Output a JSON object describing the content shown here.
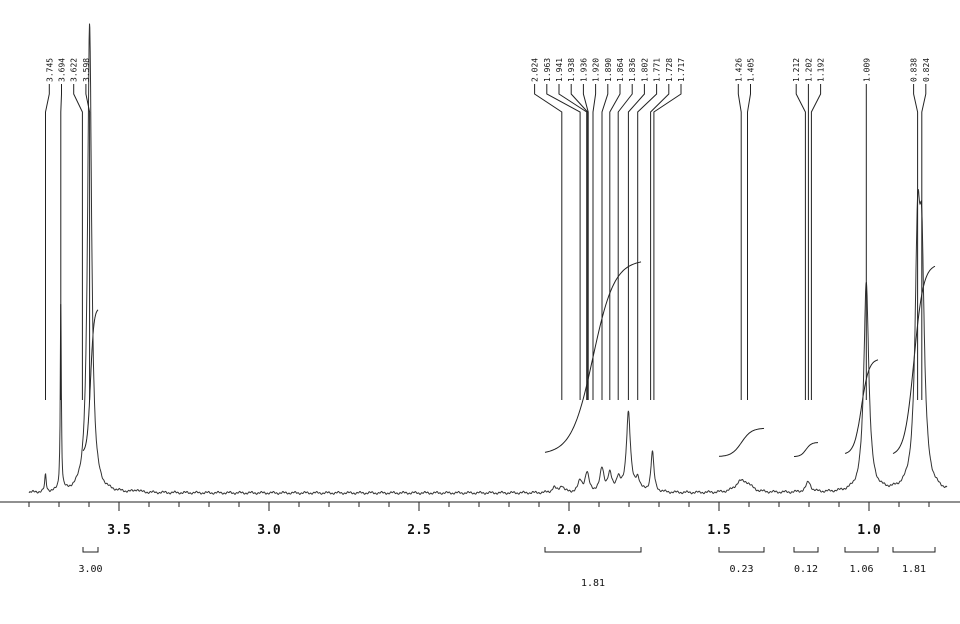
{
  "chart_data": {
    "type": "line",
    "title": "",
    "xlabel": "",
    "ylabel": "",
    "x_axis": {
      "unit": "",
      "reversed": true,
      "xlim": [
        3.8,
        0.74
      ],
      "major_ticks": [
        {
          "value": 3.5,
          "label": "3.5"
        },
        {
          "value": 3.0,
          "label": "3.0"
        },
        {
          "value": 2.5,
          "label": "2.5"
        },
        {
          "value": 2.0,
          "label": "2.0"
        },
        {
          "value": 1.5,
          "label": "1.5"
        },
        {
          "value": 1.0,
          "label": "1.0"
        }
      ],
      "minor_tick_step": 0.1
    },
    "peak_labels": [
      {
        "label": "3.745",
        "shift": 3.745
      },
      {
        "label": "3.694",
        "shift": 3.694
      },
      {
        "label": "3.622",
        "shift": 3.622
      },
      {
        "label": "3.598",
        "shift": 3.598
      },
      {
        "label": "2.024",
        "shift": 2.024
      },
      {
        "label": "1.963",
        "shift": 1.963
      },
      {
        "label": "1.941",
        "shift": 1.941
      },
      {
        "label": "1.938",
        "shift": 1.938
      },
      {
        "label": "1.936",
        "shift": 1.936
      },
      {
        "label": "1.920",
        "shift": 1.92
      },
      {
        "label": "1.890",
        "shift": 1.89
      },
      {
        "label": "1.864",
        "shift": 1.864
      },
      {
        "label": "1.836",
        "shift": 1.836
      },
      {
        "label": "1.802",
        "shift": 1.802
      },
      {
        "label": "1.771",
        "shift": 1.771
      },
      {
        "label": "1.728",
        "shift": 1.728
      },
      {
        "label": "1.717",
        "shift": 1.717
      },
      {
        "label": "1.426",
        "shift": 1.426
      },
      {
        "label": "1.405",
        "shift": 1.405
      },
      {
        "label": "1.212",
        "shift": 1.212
      },
      {
        "label": "1.202",
        "shift": 1.202
      },
      {
        "label": "1.192",
        "shift": 1.192
      },
      {
        "label": "1.009",
        "shift": 1.009
      },
      {
        "label": "0.838",
        "shift": 0.838
      },
      {
        "label": "0.824",
        "shift": 0.824
      }
    ],
    "peaks": [
      {
        "shift": 3.745,
        "height": 0.04,
        "width": 0.003
      },
      {
        "shift": 3.694,
        "height": 0.46,
        "width": 0.002
      },
      {
        "shift": 3.598,
        "height": 1.12,
        "width": 0.008
      },
      {
        "shift": 3.44,
        "height": 0.006,
        "width": 0.008
      },
      {
        "shift": 2.05,
        "height": 0.012,
        "width": 0.008
      },
      {
        "shift": 2.024,
        "height": 0.016,
        "width": 0.008
      },
      {
        "shift": 1.963,
        "height": 0.026,
        "width": 0.008
      },
      {
        "shift": 1.94,
        "height": 0.045,
        "width": 0.008
      },
      {
        "shift": 1.89,
        "height": 0.055,
        "width": 0.008
      },
      {
        "shift": 1.864,
        "height": 0.04,
        "width": 0.008
      },
      {
        "shift": 1.836,
        "height": 0.03,
        "width": 0.008
      },
      {
        "shift": 1.802,
        "height": 0.19,
        "width": 0.008
      },
      {
        "shift": 1.771,
        "height": 0.03,
        "width": 0.008
      },
      {
        "shift": 1.722,
        "height": 0.096,
        "width": 0.006
      },
      {
        "shift": 1.43,
        "height": 0.022,
        "width": 0.02
      },
      {
        "shift": 1.405,
        "height": 0.016,
        "width": 0.02
      },
      {
        "shift": 1.202,
        "height": 0.024,
        "width": 0.01
      },
      {
        "shift": 1.009,
        "height": 0.5,
        "width": 0.01
      },
      {
        "shift": 0.838,
        "height": 0.54,
        "width": 0.01
      },
      {
        "shift": 0.824,
        "height": 0.49,
        "width": 0.01
      }
    ],
    "integrals": [
      {
        "from": 3.62,
        "to": 3.57,
        "value": "3.00",
        "curve_start": 0.185,
        "curve_end": 0.84
      },
      {
        "from": 2.08,
        "to": 1.76,
        "value": "1.81",
        "curve_start": 0.175,
        "curve_end": 1.06
      },
      {
        "from": 1.5,
        "to": 1.35,
        "value": "0.23",
        "curve_start": 0.165,
        "curve_end": 0.295
      },
      {
        "from": 1.25,
        "to": 1.17,
        "value": "0.12",
        "curve_start": 0.165,
        "curve_end": 0.23
      },
      {
        "from": 1.08,
        "to": 0.97,
        "value": "1.06",
        "curve_start": 0.175,
        "curve_end": 0.61
      },
      {
        "from": 0.92,
        "to": 0.78,
        "value": "1.81",
        "curve_start": 0.17,
        "curve_end": 1.04
      }
    ]
  }
}
